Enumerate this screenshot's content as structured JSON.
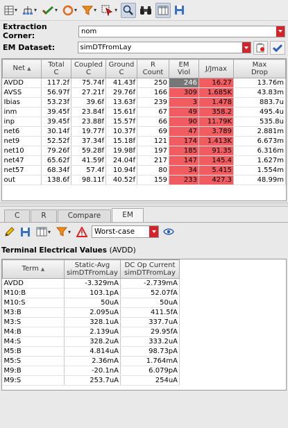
{
  "toolbar": {
    "icons": [
      "grid-settings-icon",
      "hierarchy-icon",
      "check-icon",
      "refresh-icon",
      "filter-icon",
      "select-cursor-icon",
      "zoom-icon",
      "binoculars-icon",
      "columns-icon",
      "save-icon"
    ]
  },
  "extraction_corner": {
    "label": "Extraction Corner:",
    "value": "nom"
  },
  "em_dataset": {
    "label": "EM Dataset:",
    "value": "simDTFromLay"
  },
  "em_table": {
    "columns": [
      {
        "l1": "Net",
        "l2": ""
      },
      {
        "l1": "Total",
        "l2": "C"
      },
      {
        "l1": "Coupled",
        "l2": "C"
      },
      {
        "l1": "Ground",
        "l2": "C"
      },
      {
        "l1": "R",
        "l2": "Count"
      },
      {
        "l1": "EM",
        "l2": "Viol"
      },
      {
        "l1": "J/Jmax",
        "l2": ""
      },
      {
        "l1": "Max",
        "l2": "Drop"
      }
    ],
    "rows": [
      {
        "net": "AVDD",
        "total": "117.2f",
        "coupled": "75.74f",
        "ground": "41.43f",
        "rcount": "250",
        "emviol": "246",
        "jjmax": "16.27",
        "maxdrop": "13.76m"
      },
      {
        "net": "AVSS",
        "total": "56.97f",
        "coupled": "27.21f",
        "ground": "29.76f",
        "rcount": "166",
        "emviol": "309",
        "jjmax": "1.685K",
        "maxdrop": "43.83m"
      },
      {
        "net": "Ibias",
        "total": "53.23f",
        "coupled": "39.6f",
        "ground": "13.63f",
        "rcount": "239",
        "emviol": "3",
        "jjmax": "1.478",
        "maxdrop": "883.7u"
      },
      {
        "net": "inm",
        "total": "39.45f",
        "coupled": "23.84f",
        "ground": "15.61f",
        "rcount": "67",
        "emviol": "49",
        "jjmax": "358.2",
        "maxdrop": "495.4u"
      },
      {
        "net": "inp",
        "total": "39.45f",
        "coupled": "23.88f",
        "ground": "15.57f",
        "rcount": "66",
        "emviol": "90",
        "jjmax": "11.79K",
        "maxdrop": "535.8u"
      },
      {
        "net": "net6",
        "total": "30.14f",
        "coupled": "19.77f",
        "ground": "10.37f",
        "rcount": "69",
        "emviol": "47",
        "jjmax": "3.789",
        "maxdrop": "2.881m"
      },
      {
        "net": "net9",
        "total": "52.52f",
        "coupled": "37.34f",
        "ground": "15.18f",
        "rcount": "121",
        "emviol": "174",
        "jjmax": "1.413K",
        "maxdrop": "6.673m"
      },
      {
        "net": "net10",
        "total": "79.26f",
        "coupled": "59.28f",
        "ground": "19.98f",
        "rcount": "197",
        "emviol": "185",
        "jjmax": "91.35",
        "maxdrop": "6.316m"
      },
      {
        "net": "net47",
        "total": "65.62f",
        "coupled": "41.59f",
        "ground": "24.04f",
        "rcount": "217",
        "emviol": "147",
        "jjmax": "145.4",
        "maxdrop": "1.627m"
      },
      {
        "net": "net57",
        "total": "68.34f",
        "coupled": "57.4f",
        "ground": "10.94f",
        "rcount": "80",
        "emviol": "34",
        "jjmax": "5.415",
        "maxdrop": "1.554m"
      },
      {
        "net": "out",
        "total": "138.6f",
        "coupled": "98.11f",
        "ground": "40.52f",
        "rcount": "159",
        "emviol": "233",
        "jjmax": "427.3",
        "maxdrop": "48.99m"
      }
    ]
  },
  "tabs": [
    {
      "label": "C",
      "active": false
    },
    {
      "label": "R",
      "active": false
    },
    {
      "label": "Compare",
      "active": false
    },
    {
      "label": "EM",
      "active": true
    }
  ],
  "em_panel": {
    "mode": "Worst-case",
    "title": "Terminal Electrical Values",
    "subtitle": "(AVDD)",
    "columns": [
      {
        "l1": "Term",
        "l2": ""
      },
      {
        "l1": "Static-Avg",
        "l2": "simDTFromLay"
      },
      {
        "l1": "DC Op Current",
        "l2": "simDTFromLay"
      }
    ],
    "rows": [
      {
        "term": "AVDD",
        "static": "-3.329mA",
        "dcop": "-2.739mA"
      },
      {
        "term": "M10:B",
        "static": "103.1pA",
        "dcop": "52.07fA"
      },
      {
        "term": "M10:S",
        "static": "50uA",
        "dcop": "50uA"
      },
      {
        "term": "M3:B",
        "static": "2.095uA",
        "dcop": "411.5fA"
      },
      {
        "term": "M3:S",
        "static": "328.1uA",
        "dcop": "337.7uA"
      },
      {
        "term": "M4:B",
        "static": "2.139uA",
        "dcop": "29.95fA"
      },
      {
        "term": "M4:S",
        "static": "328.2uA",
        "dcop": "333.2uA"
      },
      {
        "term": "M5:B",
        "static": "4.814uA",
        "dcop": "98.73pA"
      },
      {
        "term": "M5:S",
        "static": "2.36mA",
        "dcop": "1.764mA"
      },
      {
        "term": "M9:B",
        "static": "-20.1nA",
        "dcop": "6.079pA"
      },
      {
        "term": "M9:S",
        "static": "253.7uA",
        "dcop": "254uA"
      }
    ]
  }
}
